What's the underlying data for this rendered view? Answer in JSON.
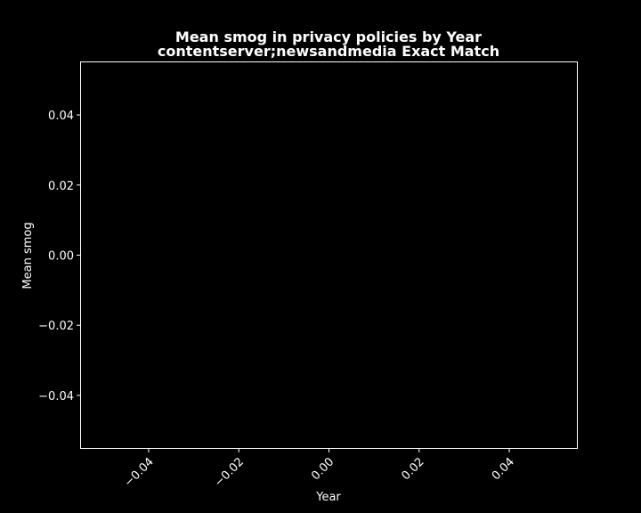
{
  "chart_data": {
    "type": "line",
    "title": "Mean smog in privacy policies by Year",
    "subtitle": "contentserver;newsandmedia Exact Match",
    "xlabel": "Year",
    "ylabel": "Mean smog",
    "xlim": [
      -0.055,
      0.055
    ],
    "ylim": [
      -0.055,
      0.055
    ],
    "x_ticks": [
      -0.04,
      -0.02,
      0.0,
      0.02,
      0.04
    ],
    "x_tick_labels": [
      "−0.04",
      "−0.02",
      "0.00",
      "0.02",
      "0.04"
    ],
    "y_ticks": [
      0.04,
      0.02,
      0.0,
      -0.02,
      -0.04
    ],
    "y_tick_labels": [
      "0.04",
      "0.02",
      "0.00",
      "−0.02",
      "−0.04"
    ],
    "series": [],
    "grid": false,
    "colors": {
      "background": "#000000",
      "foreground": "#ffffff"
    }
  }
}
